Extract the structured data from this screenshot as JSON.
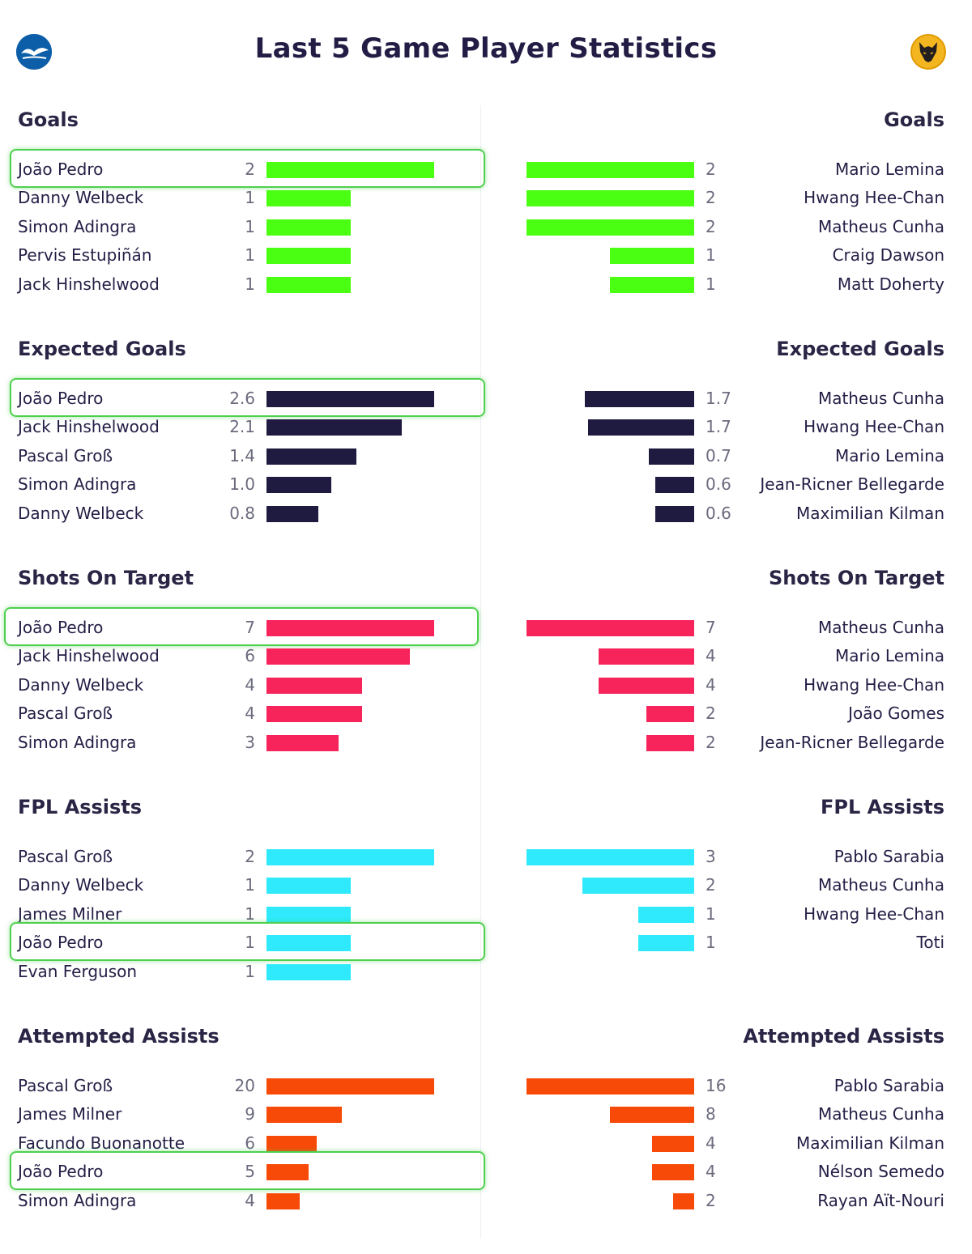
{
  "title": "Last 5 Game Player Statistics",
  "teams": {
    "left_crest": "brighton-seagull-crest",
    "right_crest": "wolves-wolf-crest"
  },
  "colors": {
    "goals": "#4bff13",
    "expected_goals": "#1f1a3f",
    "shots_on_target": "#f7245c",
    "fpl_assists": "#2eeafc",
    "attempted_assists": "#f74a08",
    "highlight": "#4fcf4f"
  },
  "chart_data": [
    {
      "type": "bar",
      "stat": "Goals",
      "color_key": "goals",
      "max": 2,
      "left": {
        "title": "Goals",
        "players": [
          {
            "name": "João Pedro",
            "value": 2,
            "label": "2",
            "highlight": true
          },
          {
            "name": "Danny Welbeck",
            "value": 1,
            "label": "1"
          },
          {
            "name": "Simon Adingra",
            "value": 1,
            "label": "1"
          },
          {
            "name": "Pervis Estupiñán",
            "value": 1,
            "label": "1"
          },
          {
            "name": "Jack Hinshelwood",
            "value": 1,
            "label": "1"
          }
        ]
      },
      "right": {
        "title": "Goals",
        "players": [
          {
            "name": "Mario Lemina",
            "value": 2,
            "label": "2"
          },
          {
            "name": "Hwang Hee-Chan",
            "value": 2,
            "label": "2"
          },
          {
            "name": "Matheus Cunha",
            "value": 2,
            "label": "2"
          },
          {
            "name": "Craig Dawson",
            "value": 1,
            "label": "1"
          },
          {
            "name": "Matt Doherty",
            "value": 1,
            "label": "1"
          }
        ]
      }
    },
    {
      "type": "bar",
      "stat": "Expected Goals",
      "color_key": "expected_goals",
      "max": 2.6,
      "left": {
        "title": "Expected Goals",
        "players": [
          {
            "name": "João Pedro",
            "value": 2.6,
            "label": "2.6",
            "highlight": true
          },
          {
            "name": "Jack Hinshelwood",
            "value": 2.1,
            "label": "2.1"
          },
          {
            "name": "Pascal Groß",
            "value": 1.4,
            "label": "1.4"
          },
          {
            "name": "Simon Adingra",
            "value": 1.0,
            "label": "1.0"
          },
          {
            "name": "Danny Welbeck",
            "value": 0.8,
            "label": "0.8"
          }
        ]
      },
      "right": {
        "title": "Expected Goals",
        "players": [
          {
            "name": "Matheus Cunha",
            "value": 1.7,
            "label": "1.7"
          },
          {
            "name": "Hwang Hee-Chan",
            "value": 1.65,
            "label": "1.7"
          },
          {
            "name": "Mario Lemina",
            "value": 0.7,
            "label": "0.7"
          },
          {
            "name": "Jean-Ricner Bellegarde",
            "value": 0.6,
            "label": "0.6"
          },
          {
            "name": "Maximilian Kilman",
            "value": 0.6,
            "label": "0.6"
          }
        ]
      }
    },
    {
      "type": "bar",
      "stat": "Shots On Target",
      "color_key": "shots_on_target",
      "max": 7,
      "left": {
        "title": "Shots On Target",
        "players": [
          {
            "name": "João Pedro",
            "value": 7,
            "label": "7",
            "highlight": true
          },
          {
            "name": "Jack Hinshelwood",
            "value": 6,
            "label": "6"
          },
          {
            "name": "Danny Welbeck",
            "value": 4,
            "label": "4"
          },
          {
            "name": "Pascal Groß",
            "value": 4,
            "label": "4"
          },
          {
            "name": "Simon Adingra",
            "value": 3,
            "label": "3"
          }
        ]
      },
      "right": {
        "title": "Shots On Target",
        "players": [
          {
            "name": "Matheus Cunha",
            "value": 7,
            "label": "7"
          },
          {
            "name": "Mario Lemina",
            "value": 4,
            "label": "4"
          },
          {
            "name": "Hwang Hee-Chan",
            "value": 4,
            "label": "4"
          },
          {
            "name": "João Gomes",
            "value": 2,
            "label": "2"
          },
          {
            "name": "Jean-Ricner Bellegarde",
            "value": 2,
            "label": "2"
          }
        ]
      }
    },
    {
      "type": "bar",
      "stat": "FPL Assists",
      "color_key": "fpl_assists",
      "left_max": 2,
      "right_max": 3,
      "left": {
        "title": "FPL Assists",
        "players": [
          {
            "name": "Pascal Groß",
            "value": 2,
            "label": "2"
          },
          {
            "name": "Danny Welbeck",
            "value": 1,
            "label": "1"
          },
          {
            "name": "James Milner",
            "value": 1,
            "label": "1"
          },
          {
            "name": "João Pedro",
            "value": 1,
            "label": "1",
            "highlight": true
          },
          {
            "name": "Evan Ferguson",
            "value": 1,
            "label": "1"
          }
        ]
      },
      "right": {
        "title": "FPL Assists",
        "players": [
          {
            "name": "Pablo Sarabia",
            "value": 3,
            "label": "3"
          },
          {
            "name": "Matheus Cunha",
            "value": 2,
            "label": "2"
          },
          {
            "name": "Hwang Hee-Chan",
            "value": 1,
            "label": "1"
          },
          {
            "name": "Toti",
            "value": 1,
            "label": "1"
          }
        ]
      }
    },
    {
      "type": "bar",
      "stat": "Attempted Assists",
      "color_key": "attempted_assists",
      "left_max": 20,
      "right_max": 16,
      "left": {
        "title": "Attempted Assists",
        "players": [
          {
            "name": "Pascal Groß",
            "value": 20,
            "label": "20"
          },
          {
            "name": "James Milner",
            "value": 9,
            "label": "9"
          },
          {
            "name": "Facundo Buonanotte",
            "value": 6,
            "label": "6"
          },
          {
            "name": "João Pedro",
            "value": 5,
            "label": "5",
            "highlight": true
          },
          {
            "name": "Simon Adingra",
            "value": 4,
            "label": "4"
          }
        ]
      },
      "right": {
        "title": "Attempted Assists",
        "players": [
          {
            "name": "Pablo Sarabia",
            "value": 16,
            "label": "16"
          },
          {
            "name": "Matheus Cunha",
            "value": 8,
            "label": "8"
          },
          {
            "name": "Maximilian Kilman",
            "value": 4,
            "label": "4"
          },
          {
            "name": "Nélson Semedo",
            "value": 4,
            "label": "4"
          },
          {
            "name": "Rayan Aït-Nouri",
            "value": 2,
            "label": "2"
          }
        ]
      }
    }
  ]
}
